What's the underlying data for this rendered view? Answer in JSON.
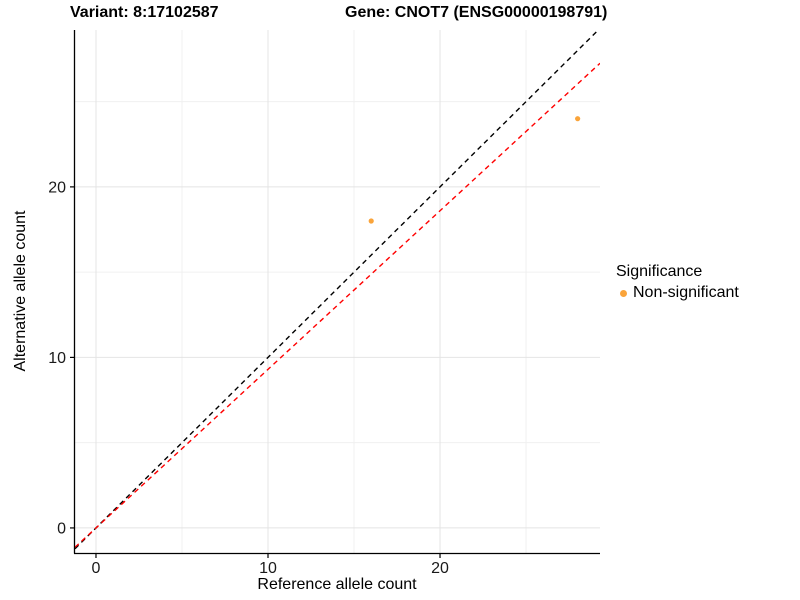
{
  "titles": {
    "variant": "Variant: 8:17102587",
    "gene": "Gene: CNOT7 (ENSG00000198791)"
  },
  "axes": {
    "x_label": "Reference allele count",
    "y_label": "Alternative allele count"
  },
  "legend": {
    "title": "Significance",
    "items": [
      {
        "label": "Non-significant",
        "color": "#FAA43A"
      }
    ]
  },
  "colors": {
    "background": "#FFFFFF",
    "axis_line": "#000000",
    "tick_label": "#1A1A1A",
    "grid_major": "#E4E4E4",
    "grid_minor": "#F0F0F0",
    "identity_line": "#000000",
    "ratio_line": "#FF0000",
    "point": "#FAA43A"
  },
  "chart_data": {
    "type": "scatter",
    "title": "Variant: 8:17102587    Gene: CNOT7 (ENSG00000198791)",
    "xlabel": "Reference allele count",
    "ylabel": "Alternative allele count",
    "xlim": [
      -1.22,
      29.3
    ],
    "ylim": [
      -1.47,
      29.2
    ],
    "x_ticks": [
      0,
      10,
      20
    ],
    "y_ticks": [
      0,
      10,
      20
    ],
    "x_minor_ticks": [
      5,
      15,
      25
    ],
    "y_minor_ticks": [
      5,
      15,
      25
    ],
    "grid": true,
    "legend_position": "right",
    "series": [
      {
        "name": "Non-significant",
        "color": "#FAA43A",
        "points": [
          [
            16,
            18
          ],
          [
            28,
            24
          ]
        ]
      }
    ],
    "reference_lines": [
      {
        "name": "identity",
        "slope": 1.0,
        "intercept": 0,
        "color": "#000000",
        "style": "dashed"
      },
      {
        "name": "expected-ratio",
        "slope": 0.93,
        "intercept": 0,
        "color": "#FF0000",
        "style": "dashed"
      }
    ]
  }
}
